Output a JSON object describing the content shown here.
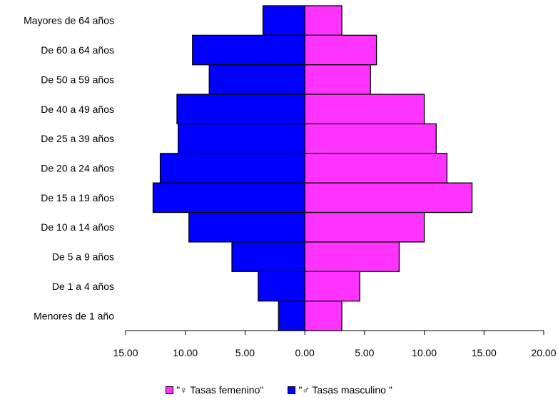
{
  "chart_data": {
    "type": "bar",
    "orientation": "horizontal-population-pyramid",
    "categories": [
      "Mayores de 64 años",
      "De 60 a 64 años",
      "De 50 a 59 años",
      "De 40 a 49 años",
      "De 25 a 39 años",
      "De 20 a 24 años",
      "De 15 a 19 años",
      "De 10 a 14 años",
      "De 5 a 9 años",
      "De 1 a 4 años",
      "Menores de 1 año"
    ],
    "series": [
      {
        "name": "\"♀ Tasas femenino\"",
        "color": "#ff33ff",
        "values": [
          3.1,
          6.0,
          5.5,
          10.0,
          11.0,
          11.9,
          14.0,
          10.0,
          7.9,
          4.6,
          3.1
        ]
      },
      {
        "name": "\"♂ Tasas masculino \"",
        "color": "#0000ff",
        "values": [
          3.5,
          9.4,
          8.0,
          10.7,
          10.6,
          12.1,
          12.7,
          9.7,
          6.1,
          3.9,
          2.2
        ]
      }
    ],
    "x_tick_labels": [
      "15.00",
      "10.00",
      "5.00",
      "0.00",
      "5.00",
      "10.00",
      "15.00",
      "20.00"
    ],
    "xlim": [
      -15,
      20
    ],
    "title": "",
    "xlabel": "",
    "ylabel": "",
    "grid": false,
    "legend_position": "bottom"
  }
}
